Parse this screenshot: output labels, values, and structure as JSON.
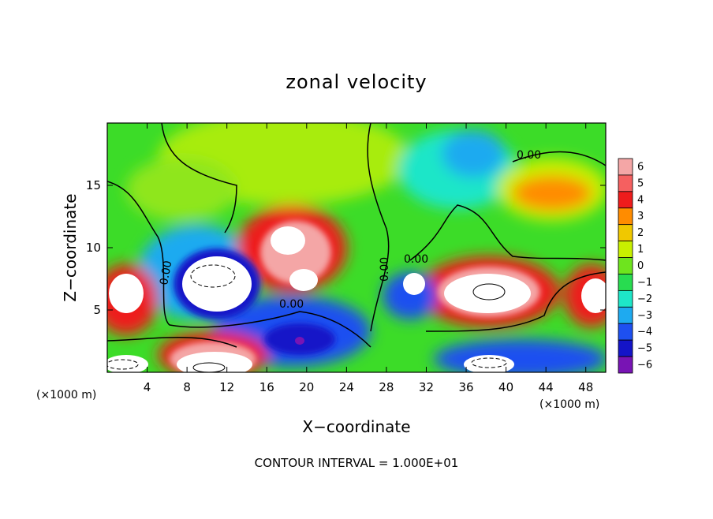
{
  "chart_data": {
    "type": "heatmap",
    "title": "zonal velocity",
    "xlabel": "X−coordinate",
    "ylabel": "Z−coordinate",
    "x_unit_left": "(×1000 m)",
    "x_unit_right": "(×1000 m)",
    "xlim": [
      0,
      50
    ],
    "ylim": [
      0,
      20
    ],
    "x_ticks": [
      4,
      8,
      12,
      16,
      20,
      24,
      28,
      32,
      36,
      40,
      44,
      48
    ],
    "x_tick_labels": [
      "4",
      "8",
      "12",
      "16",
      "20",
      "24",
      "28",
      "32",
      "36",
      "40",
      "44",
      "48"
    ],
    "y_ticks": [
      5,
      10,
      15
    ],
    "y_tick_labels": [
      "5",
      "10",
      "15"
    ],
    "colorbar": {
      "levels": [
        6,
        5,
        4,
        3,
        2,
        1,
        0,
        -1,
        -2,
        -3,
        -4,
        -5,
        -6
      ],
      "labels": [
        "6",
        "5",
        "4",
        "3",
        "2",
        "1",
        "0",
        "−1",
        "−2",
        "−3",
        "−4",
        "−5",
        "−6"
      ],
      "colors": [
        "#f4a6a6",
        "#f56060",
        "#ee1c1c",
        "#ff8c00",
        "#f0c800",
        "#c8f000",
        "#6ee41e",
        "#28dc50",
        "#1ee6c8",
        "#1eaaf0",
        "#1e50f0",
        "#1414c8",
        "#7814b4"
      ]
    },
    "contour_labels": [
      "0.00",
      "0.00",
      "0.00",
      "0.00",
      "0.00"
    ],
    "footer": "CONTOUR INTERVAL = 1.000E+01",
    "features": [
      {
        "x": 11,
        "z": 8,
        "value": -6
      },
      {
        "x": 10,
        "z": 1.3,
        "value": 6
      },
      {
        "x": 18,
        "z": 11,
        "value": 6
      },
      {
        "x": 38,
        "z": 7,
        "value": 6
      },
      {
        "x": 44,
        "z": 14.5,
        "value": 3
      },
      {
        "x": 36,
        "z": 17.5,
        "value": -3
      },
      {
        "x": 20,
        "z": 3,
        "value": -5
      },
      {
        "x": 31,
        "z": 6.5,
        "value": -5
      },
      {
        "x": 2,
        "z": 5,
        "value": 6
      }
    ]
  }
}
